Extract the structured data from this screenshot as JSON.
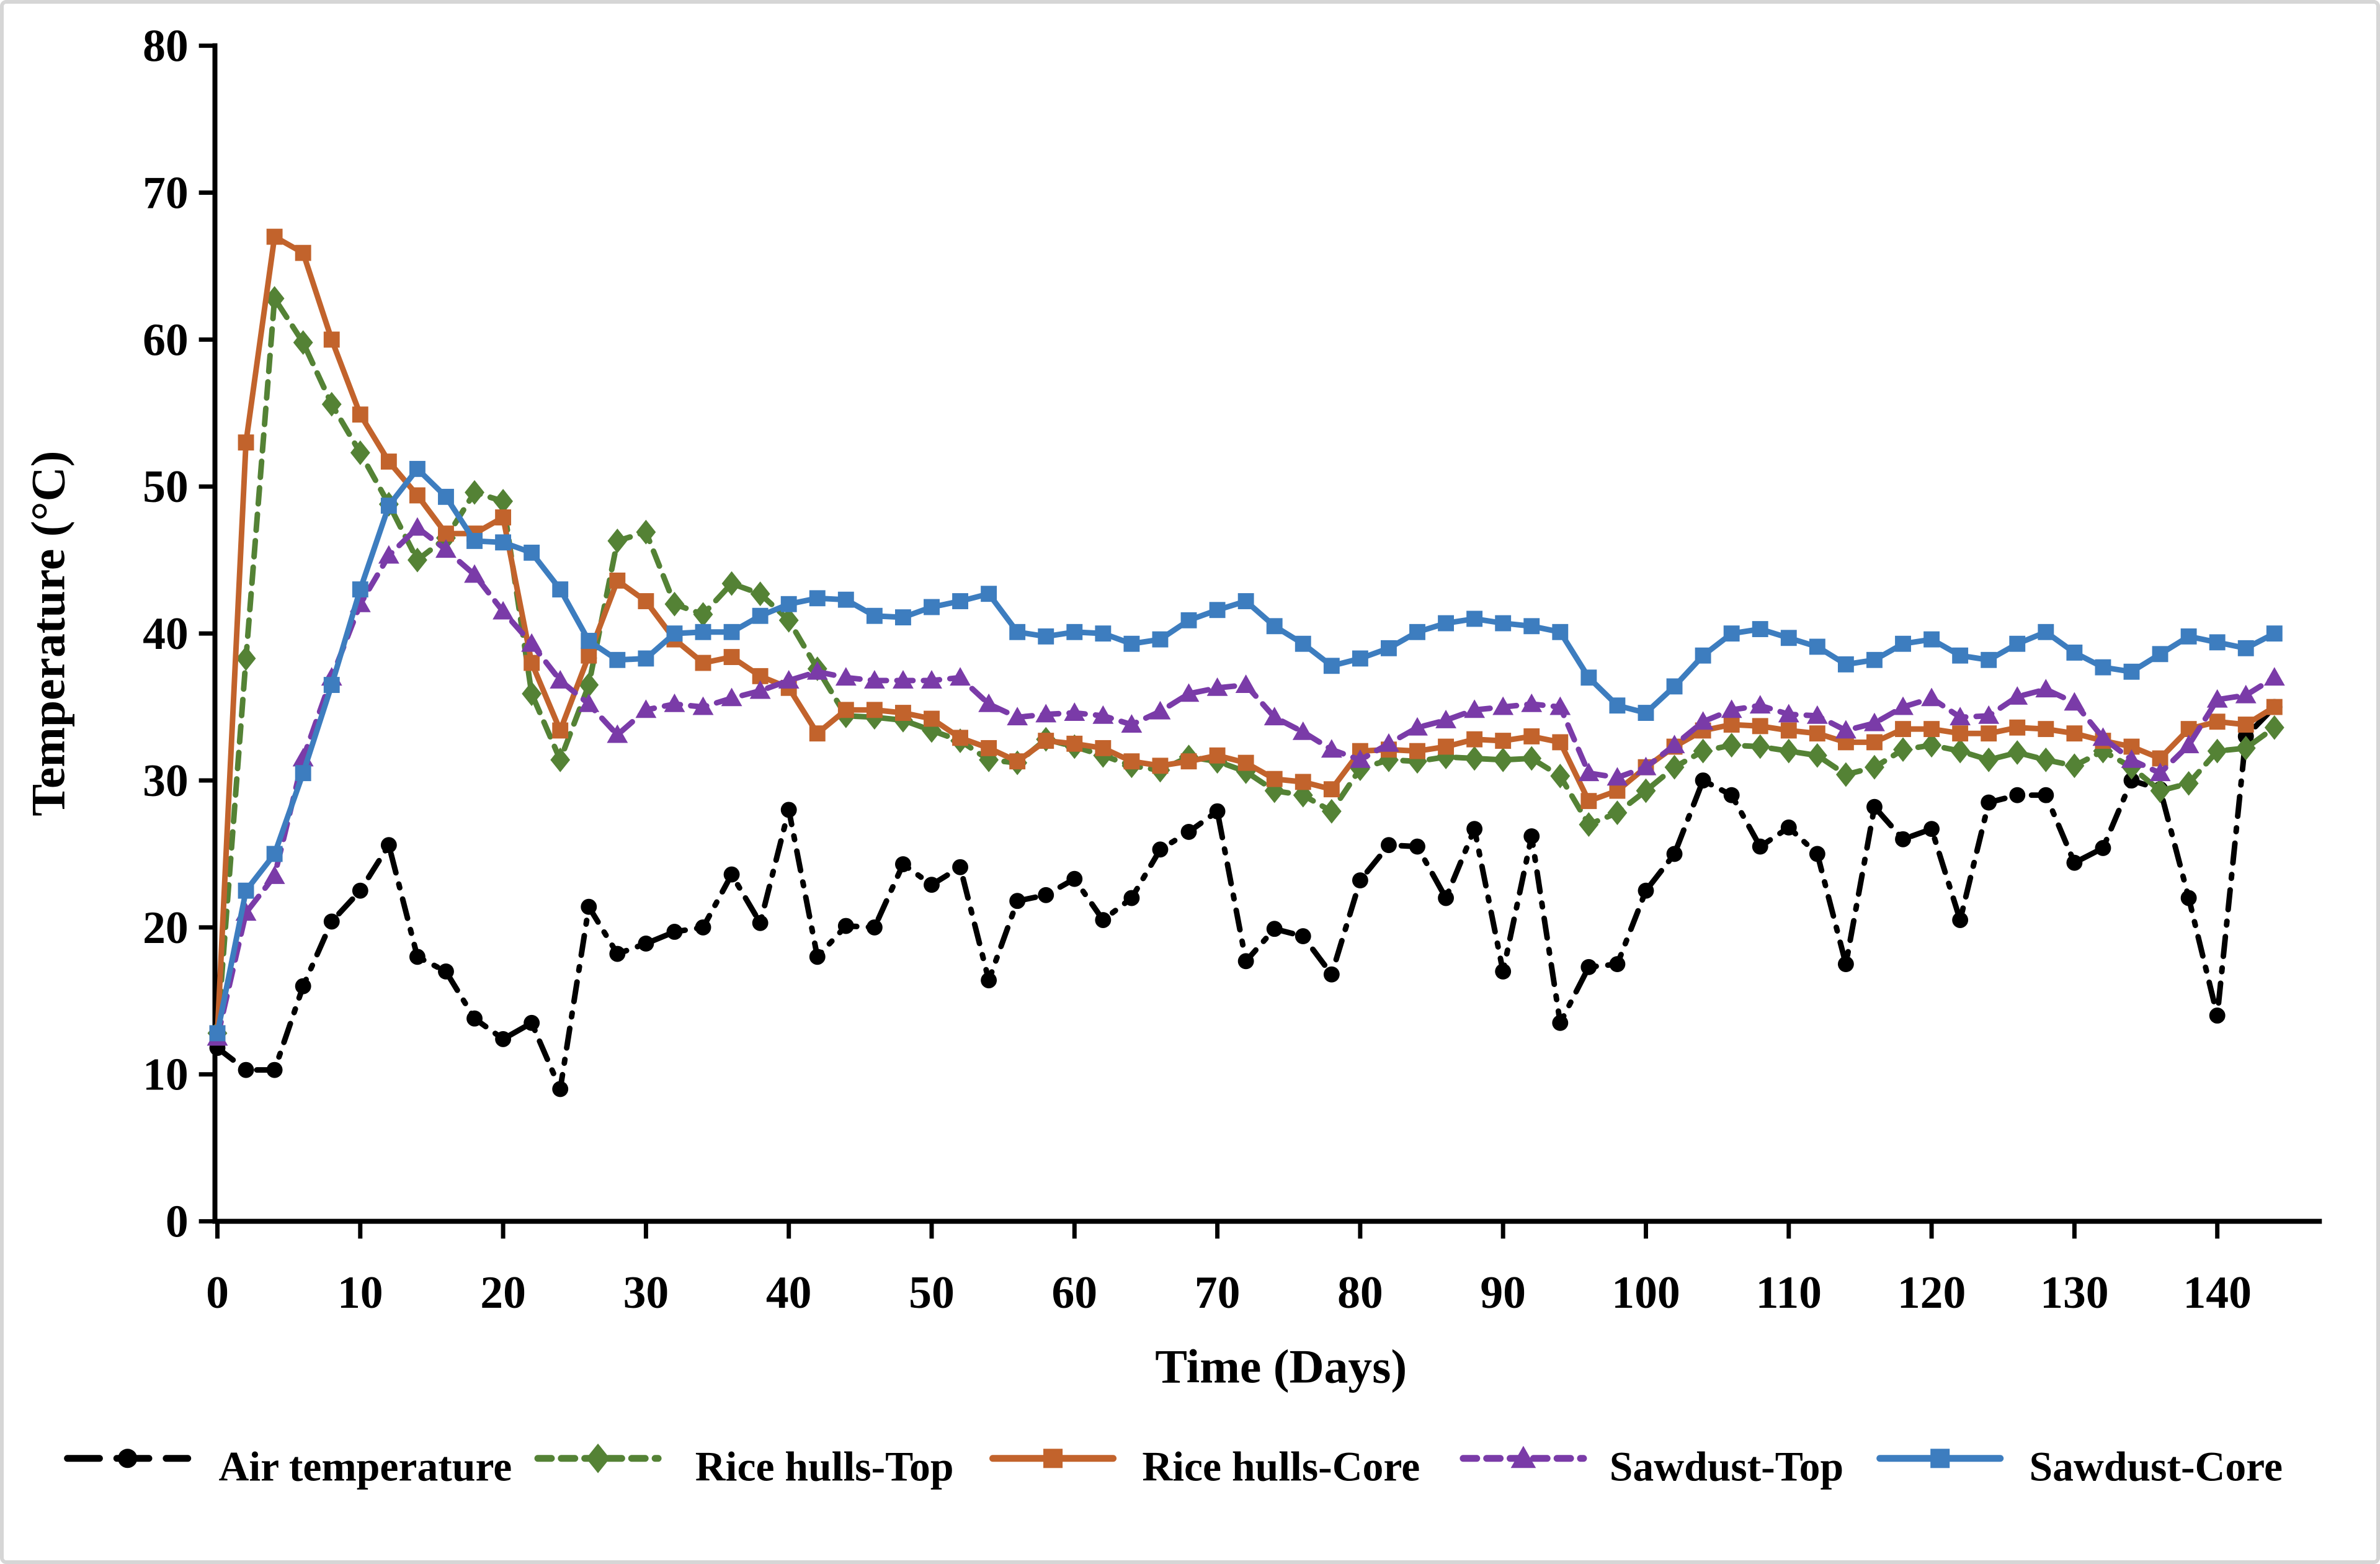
{
  "figure": {
    "background": "#ffffff",
    "border_color": "#d6d6d6"
  },
  "chart_data": {
    "type": "line",
    "title": "",
    "xlabel": "Time (Days)",
    "ylabel": "Temperature (°C)",
    "xlim": [
      0,
      147.5
    ],
    "ylim": [
      0,
      80
    ],
    "x_ticks": [
      0,
      10,
      20,
      30,
      40,
      50,
      60,
      70,
      80,
      90,
      100,
      110,
      120,
      130,
      140
    ],
    "y_ticks": [
      0,
      10,
      20,
      30,
      40,
      50,
      60,
      70,
      80
    ],
    "grid": false,
    "legend_position": "bottom",
    "days": [
      0,
      2,
      4,
      6,
      8,
      10,
      12,
      14,
      16,
      18,
      20,
      22,
      24,
      26,
      28,
      30,
      32,
      34,
      36,
      38,
      40,
      42,
      44,
      46,
      48,
      50,
      52,
      54,
      56,
      58,
      60,
      62,
      64,
      66,
      68,
      70,
      72,
      74,
      76,
      78,
      80,
      82,
      84,
      86,
      88,
      90,
      92,
      94,
      96,
      98,
      100,
      102,
      104,
      106,
      108,
      110,
      112,
      114,
      116,
      118,
      120,
      122,
      124,
      126,
      128,
      130,
      132,
      134,
      136,
      138,
      140,
      142,
      144
    ],
    "series": [
      {
        "name": "Air temperature",
        "color": "#000000",
        "line": "dashdot",
        "marker": "circle",
        "values": [
          11.8,
          10.3,
          10.3,
          16.0,
          20.4,
          22.5,
          25.6,
          18.0,
          17.0,
          13.8,
          12.4,
          13.5,
          9.0,
          21.4,
          18.2,
          18.9,
          19.7,
          20.0,
          23.6,
          20.3,
          28.0,
          18.0,
          20.1,
          20.0,
          24.3,
          22.9,
          24.1,
          16.4,
          21.8,
          22.2,
          23.3,
          20.5,
          22.0,
          25.3,
          26.5,
          27.9,
          17.7,
          19.9,
          19.4,
          16.8,
          23.2,
          25.6,
          25.5,
          22.0,
          26.7,
          17.0,
          26.2,
          13.5,
          17.3,
          17.5,
          22.5,
          25.0,
          30.0,
          29.0,
          25.5,
          26.8,
          25.0,
          17.5,
          28.2,
          26.0,
          26.7,
          20.5,
          28.5,
          29.0,
          29.0,
          24.4,
          25.4,
          30.0,
          29.4,
          22.0,
          14.0,
          33.0,
          35.0
        ]
      },
      {
        "name": "Rice hulls-Top",
        "color": "#548235",
        "line": "dashed",
        "marker": "diamond",
        "values": [
          12.8,
          38.3,
          62.8,
          59.8,
          55.6,
          52.3,
          48.8,
          45.0,
          46.5,
          49.6,
          49.0,
          35.9,
          31.4,
          36.5,
          46.3,
          46.9,
          42.0,
          41.3,
          43.4,
          42.7,
          40.9,
          37.6,
          34.4,
          34.3,
          34.1,
          33.4,
          32.7,
          31.4,
          31.2,
          32.8,
          32.3,
          31.7,
          31.0,
          30.7,
          31.6,
          31.3,
          30.6,
          29.3,
          29.0,
          27.9,
          30.8,
          31.4,
          31.3,
          31.6,
          31.5,
          31.4,
          31.5,
          30.3,
          27.0,
          27.8,
          29.3,
          30.9,
          32.0,
          32.4,
          32.3,
          32.0,
          31.7,
          30.4,
          30.9,
          32.1,
          32.4,
          32.0,
          31.4,
          31.9,
          31.4,
          31.0,
          32.0,
          30.9,
          29.3,
          29.8,
          32.0,
          32.2,
          33.6
        ]
      },
      {
        "name": "Rice hulls-Core",
        "color": "#c2632c",
        "line": "solid",
        "marker": "square",
        "values": [
          12.8,
          53.0,
          67.0,
          65.9,
          60.0,
          54.9,
          51.7,
          49.4,
          46.8,
          46.8,
          47.9,
          38.0,
          33.4,
          38.5,
          43.6,
          42.2,
          39.6,
          38.0,
          38.4,
          37.1,
          36.3,
          33.2,
          34.8,
          34.8,
          34.6,
          34.2,
          32.9,
          32.2,
          31.3,
          32.7,
          32.5,
          32.2,
          31.3,
          31.0,
          31.3,
          31.7,
          31.2,
          30.1,
          29.9,
          29.4,
          32.0,
          32.1,
          32.0,
          32.3,
          32.8,
          32.7,
          33.0,
          32.6,
          28.6,
          29.3,
          30.9,
          32.3,
          33.4,
          33.8,
          33.7,
          33.4,
          33.2,
          32.6,
          32.6,
          33.5,
          33.5,
          33.2,
          33.2,
          33.6,
          33.5,
          33.2,
          32.7,
          32.3,
          31.5,
          33.5,
          34.0,
          33.8,
          35.0
        ]
      },
      {
        "name": "Sawdust-Top",
        "color": "#7a3ba8",
        "line": "dashed",
        "marker": "triangle",
        "values": [
          12.5,
          21.0,
          23.5,
          31.5,
          37.0,
          42.0,
          45.3,
          47.2,
          45.7,
          44.0,
          41.5,
          39.3,
          36.8,
          35.2,
          33.1,
          34.8,
          35.2,
          35.0,
          35.6,
          36.1,
          36.8,
          37.4,
          37.0,
          36.8,
          36.8,
          36.8,
          37.0,
          35.2,
          34.3,
          34.5,
          34.6,
          34.4,
          33.8,
          34.7,
          35.9,
          36.3,
          36.5,
          34.3,
          33.3,
          32.1,
          31.4,
          32.5,
          33.6,
          34.1,
          34.8,
          35.0,
          35.2,
          35.0,
          30.5,
          30.2,
          30.9,
          32.4,
          34.0,
          34.8,
          35.1,
          34.5,
          34.4,
          33.4,
          33.9,
          35.0,
          35.6,
          34.3,
          34.4,
          35.7,
          36.2,
          35.3,
          32.9,
          31.4,
          30.5,
          32.4,
          35.5,
          35.8,
          37.0
        ]
      },
      {
        "name": "Sawdust-Core",
        "color": "#3d7dbf",
        "line": "solid",
        "marker": "square",
        "values": [
          12.8,
          22.5,
          25.0,
          30.5,
          36.5,
          43.0,
          48.7,
          51.2,
          49.3,
          46.3,
          46.2,
          45.5,
          43.0,
          39.5,
          38.2,
          38.3,
          40.0,
          40.1,
          40.1,
          41.2,
          42.0,
          42.4,
          42.3,
          41.2,
          41.1,
          41.8,
          42.2,
          42.7,
          40.1,
          39.8,
          40.1,
          40.0,
          39.3,
          39.6,
          40.9,
          41.6,
          42.2,
          40.5,
          39.3,
          37.8,
          38.3,
          39.0,
          40.1,
          40.7,
          41.0,
          40.7,
          40.5,
          40.1,
          37.0,
          35.1,
          34.6,
          36.4,
          38.5,
          40.0,
          40.3,
          39.7,
          39.1,
          37.9,
          38.2,
          39.3,
          39.6,
          38.5,
          38.2,
          39.3,
          40.1,
          38.7,
          37.7,
          37.4,
          38.6,
          39.8,
          39.4,
          39.0,
          40.0
        ]
      }
    ]
  }
}
